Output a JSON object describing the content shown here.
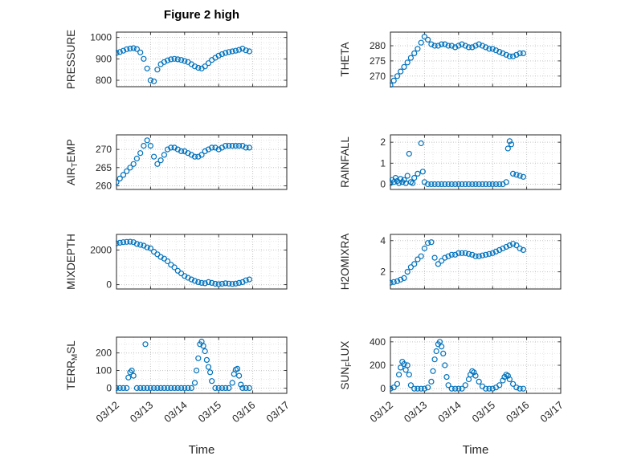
{
  "title": "Figure 2 high",
  "x_axis": {
    "label": "Time",
    "xlim": [
      12,
      17
    ],
    "ticks": [
      12,
      13,
      14,
      15,
      16,
      17
    ],
    "tick_labels": [
      "03/12",
      "03/13",
      "03/14",
      "03/15",
      "03/16",
      "03/17"
    ]
  },
  "style": {
    "marker_color": "#0072BD",
    "axis_color": "#262626",
    "grid_color": "#c4c4c4",
    "minor_grid_color": "#e6e6e6",
    "background": "#ffffff"
  },
  "chart_data": [
    {
      "name": "pressure",
      "type": "scatter",
      "ylabel": "PRESSURE",
      "ylabel_segments": [
        {
          "t": "PRESSURE"
        }
      ],
      "yticks": [
        800,
        900,
        1000
      ],
      "ylim": [
        770,
        1025
      ],
      "yminor_step": 25,
      "x": [
        12,
        12.1,
        12.2,
        12.3,
        12.4,
        12.5,
        12.6,
        12.7,
        12.8,
        12.9,
        13,
        13.1,
        13.2,
        13.3,
        13.4,
        13.5,
        13.6,
        13.7,
        13.8,
        13.9,
        14,
        14.1,
        14.2,
        14.3,
        14.4,
        14.5,
        14.6,
        14.7,
        14.8,
        14.9,
        15,
        15.1,
        15.2,
        15.3,
        15.4,
        15.5,
        15.6,
        15.7,
        15.8,
        15.9
      ],
      "y": [
        928,
        932,
        938,
        945,
        948,
        950,
        946,
        930,
        900,
        855,
        800,
        795,
        850,
        875,
        885,
        893,
        898,
        900,
        898,
        895,
        890,
        885,
        875,
        865,
        858,
        855,
        865,
        880,
        895,
        905,
        915,
        922,
        928,
        932,
        935,
        938,
        942,
        948,
        940,
        935
      ]
    },
    {
      "name": "theta",
      "type": "scatter",
      "ylabel": "THETA",
      "ylabel_segments": [
        {
          "t": "THETA"
        }
      ],
      "yticks": [
        270,
        275,
        280
      ],
      "ylim": [
        266.5,
        284.5
      ],
      "yminor_step": 2.5,
      "x": [
        12,
        12.1,
        12.2,
        12.3,
        12.4,
        12.5,
        12.6,
        12.7,
        12.8,
        12.9,
        13,
        13.1,
        13.2,
        13.3,
        13.4,
        13.5,
        13.6,
        13.7,
        13.8,
        13.9,
        14,
        14.1,
        14.2,
        14.3,
        14.4,
        14.5,
        14.6,
        14.7,
        14.8,
        14.9,
        15,
        15.1,
        15.2,
        15.3,
        15.4,
        15.5,
        15.6,
        15.7,
        15.8,
        15.9
      ],
      "y": [
        267,
        268.5,
        270,
        271.5,
        273,
        274.5,
        276,
        277.5,
        279,
        281,
        283,
        282,
        280.5,
        280,
        280,
        280.5,
        280.5,
        280,
        280,
        279.5,
        280,
        280.5,
        280,
        279.5,
        279.5,
        280,
        280.5,
        280,
        279.5,
        279,
        279,
        278.5,
        278,
        277.5,
        277,
        276.5,
        276.5,
        277,
        277.5,
        277.5
      ]
    },
    {
      "name": "air-temp",
      "type": "scatter",
      "ylabel": "AIR_TEMP",
      "ylabel_segments": [
        {
          "t": "AIR"
        },
        {
          "t": "T",
          "sub": true
        },
        {
          "t": "EMP"
        }
      ],
      "yticks": [
        260,
        265,
        270
      ],
      "ylim": [
        259,
        274
      ],
      "yminor_step": 2.5,
      "x": [
        12,
        12.1,
        12.2,
        12.3,
        12.4,
        12.5,
        12.6,
        12.7,
        12.8,
        12.9,
        13,
        13.1,
        13.2,
        13.3,
        13.4,
        13.5,
        13.6,
        13.7,
        13.8,
        13.9,
        14,
        14.1,
        14.2,
        14.3,
        14.4,
        14.5,
        14.6,
        14.7,
        14.8,
        14.9,
        15,
        15.1,
        15.2,
        15.3,
        15.4,
        15.5,
        15.6,
        15.7,
        15.8,
        15.9
      ],
      "y": [
        261,
        262,
        263,
        264,
        265,
        266,
        267.5,
        269,
        271,
        272.5,
        271,
        268,
        266,
        267,
        268.5,
        270,
        270.5,
        270.5,
        270,
        269.5,
        269.5,
        269,
        268.5,
        268,
        268,
        268.5,
        269.5,
        270,
        270.5,
        270.5,
        270,
        270.5,
        271,
        271,
        271,
        271,
        271,
        271,
        270.5,
        270.5
      ]
    },
    {
      "name": "rainfall",
      "type": "scatter",
      "ylabel": "RAINFALL",
      "ylabel_segments": [
        {
          "t": "RAINFALL"
        }
      ],
      "yticks": [
        0,
        1,
        2
      ],
      "ylim": [
        -0.25,
        2.35
      ],
      "yminor_step": 0.5,
      "x": [
        12,
        12.05,
        12.1,
        12.15,
        12.2,
        12.25,
        12.3,
        12.35,
        12.4,
        12.45,
        12.5,
        12.55,
        12.6,
        12.65,
        12.7,
        12.8,
        12.9,
        12.95,
        13,
        13.1,
        13.2,
        13.3,
        13.4,
        13.5,
        13.6,
        13.7,
        13.8,
        13.9,
        14,
        14.1,
        14.2,
        14.3,
        14.4,
        14.5,
        14.6,
        14.7,
        14.8,
        14.9,
        15,
        15.1,
        15.2,
        15.3,
        15.4,
        15.45,
        15.5,
        15.55,
        15.6,
        15.7,
        15.8,
        15.9
      ],
      "y": [
        0.05,
        0.2,
        0.1,
        0.3,
        0.15,
        0.05,
        0.25,
        0.1,
        0.2,
        0.05,
        0.4,
        1.45,
        0.1,
        0.05,
        0.3,
        0.5,
        1.95,
        0.6,
        0.1,
        0,
        0,
        0,
        0,
        0,
        0,
        0,
        0,
        0,
        0,
        0,
        0,
        0,
        0,
        0,
        0,
        0,
        0,
        0,
        0,
        0,
        0,
        0,
        0.1,
        1.7,
        2.05,
        1.9,
        0.5,
        0.45,
        0.4,
        0.35
      ]
    },
    {
      "name": "mixdepth",
      "type": "scatter",
      "ylabel": "MIXDEPTH",
      "ylabel_segments": [
        {
          "t": "MIXDEPTH"
        }
      ],
      "yticks": [
        0,
        2000
      ],
      "ylim": [
        -250,
        2900
      ],
      "yminor_step": 500,
      "x": [
        12,
        12.1,
        12.2,
        12.3,
        12.4,
        12.5,
        12.6,
        12.7,
        12.8,
        12.9,
        13,
        13.1,
        13.2,
        13.3,
        13.4,
        13.5,
        13.6,
        13.7,
        13.8,
        13.9,
        14,
        14.1,
        14.2,
        14.3,
        14.4,
        14.5,
        14.6,
        14.7,
        14.8,
        14.9,
        15,
        15.1,
        15.2,
        15.3,
        15.4,
        15.5,
        15.6,
        15.7,
        15.8,
        15.9
      ],
      "y": [
        2380,
        2420,
        2450,
        2470,
        2480,
        2450,
        2350,
        2300,
        2250,
        2150,
        2100,
        1900,
        1750,
        1600,
        1500,
        1350,
        1150,
        1000,
        800,
        650,
        500,
        400,
        300,
        220,
        150,
        100,
        80,
        150,
        100,
        50,
        30,
        50,
        80,
        60,
        40,
        60,
        100,
        150,
        250,
        300
      ]
    },
    {
      "name": "h2omixra",
      "type": "scatter",
      "ylabel": "H2OMIXRA",
      "ylabel_segments": [
        {
          "t": "H2OMIXRA"
        }
      ],
      "yticks": [
        2,
        4
      ],
      "ylim": [
        0.9,
        4.4
      ],
      "yminor_step": 0.5,
      "x": [
        12,
        12.1,
        12.2,
        12.3,
        12.4,
        12.5,
        12.6,
        12.7,
        12.8,
        12.9,
        13,
        13.1,
        13.2,
        13.3,
        13.4,
        13.5,
        13.6,
        13.7,
        13.8,
        13.9,
        14,
        14.1,
        14.2,
        14.3,
        14.4,
        14.5,
        14.6,
        14.7,
        14.8,
        14.9,
        15,
        15.1,
        15.2,
        15.3,
        15.4,
        15.5,
        15.6,
        15.7,
        15.8,
        15.9
      ],
      "y": [
        1.3,
        1.35,
        1.4,
        1.5,
        1.6,
        2,
        2.3,
        2.5,
        2.8,
        3,
        3.5,
        3.85,
        3.9,
        2.9,
        2.5,
        2.7,
        2.9,
        3,
        3.1,
        3.1,
        3.2,
        3.2,
        3.2,
        3.15,
        3.1,
        3,
        3,
        3.05,
        3.1,
        3.15,
        3.2,
        3.3,
        3.4,
        3.5,
        3.6,
        3.7,
        3.8,
        3.7,
        3.5,
        3.4
      ]
    },
    {
      "name": "terr-msl",
      "type": "scatter",
      "ylabel": "TERR_MSL",
      "ylabel_segments": [
        {
          "t": "TERR"
        },
        {
          "t": "M",
          "sub": true
        },
        {
          "t": "SL"
        }
      ],
      "yticks": [
        0,
        100,
        200
      ],
      "ylim": [
        -30,
        290
      ],
      "yminor_step": 50,
      "x": [
        12,
        12.1,
        12.2,
        12.3,
        12.35,
        12.4,
        12.45,
        12.5,
        12.6,
        12.7,
        12.8,
        12.85,
        12.9,
        13,
        13.1,
        13.2,
        13.3,
        13.4,
        13.5,
        13.6,
        13.7,
        13.8,
        13.9,
        14,
        14.1,
        14.2,
        14.3,
        14.35,
        14.4,
        14.45,
        14.5,
        14.55,
        14.6,
        14.65,
        14.7,
        14.75,
        14.8,
        14.9,
        15,
        15.1,
        15.2,
        15.3,
        15.4,
        15.45,
        15.5,
        15.55,
        15.6,
        15.65,
        15.7,
        15.8,
        15.9
      ],
      "y": [
        0,
        0,
        0,
        0,
        60,
        90,
        100,
        70,
        0,
        0,
        0,
        250,
        0,
        0,
        0,
        0,
        0,
        0,
        0,
        0,
        0,
        0,
        0,
        0,
        0,
        0,
        30,
        100,
        170,
        250,
        265,
        240,
        210,
        160,
        120,
        90,
        40,
        0,
        0,
        0,
        0,
        0,
        30,
        80,
        105,
        110,
        70,
        20,
        0,
        0,
        0
      ]
    },
    {
      "name": "sun-flux",
      "type": "scatter",
      "ylabel": "SUN_FLUX",
      "ylabel_segments": [
        {
          "t": "SUN"
        },
        {
          "t": "F",
          "sub": true
        },
        {
          "t": "LUX"
        }
      ],
      "yticks": [
        0,
        200,
        400
      ],
      "ylim": [
        -40,
        440
      ],
      "yminor_step": 100,
      "x": [
        12,
        12.1,
        12.2,
        12.25,
        12.3,
        12.35,
        12.4,
        12.45,
        12.5,
        12.55,
        12.6,
        12.7,
        12.8,
        12.9,
        13,
        13.1,
        13.2,
        13.25,
        13.3,
        13.35,
        13.4,
        13.45,
        13.5,
        13.55,
        13.6,
        13.65,
        13.7,
        13.8,
        13.9,
        14,
        14.1,
        14.2,
        14.3,
        14.35,
        14.4,
        14.45,
        14.5,
        14.6,
        14.7,
        14.8,
        14.9,
        15,
        15.1,
        15.2,
        15.3,
        15.35,
        15.4,
        15.45,
        15.5,
        15.6,
        15.7,
        15.8,
        15.9
      ],
      "y": [
        0,
        10,
        40,
        120,
        180,
        230,
        210,
        160,
        200,
        120,
        30,
        0,
        0,
        0,
        0,
        10,
        60,
        150,
        250,
        320,
        380,
        400,
        360,
        300,
        200,
        100,
        30,
        0,
        0,
        0,
        0,
        30,
        80,
        120,
        150,
        140,
        110,
        60,
        20,
        0,
        0,
        0,
        10,
        30,
        70,
        100,
        120,
        110,
        80,
        40,
        10,
        0,
        0
      ]
    }
  ]
}
